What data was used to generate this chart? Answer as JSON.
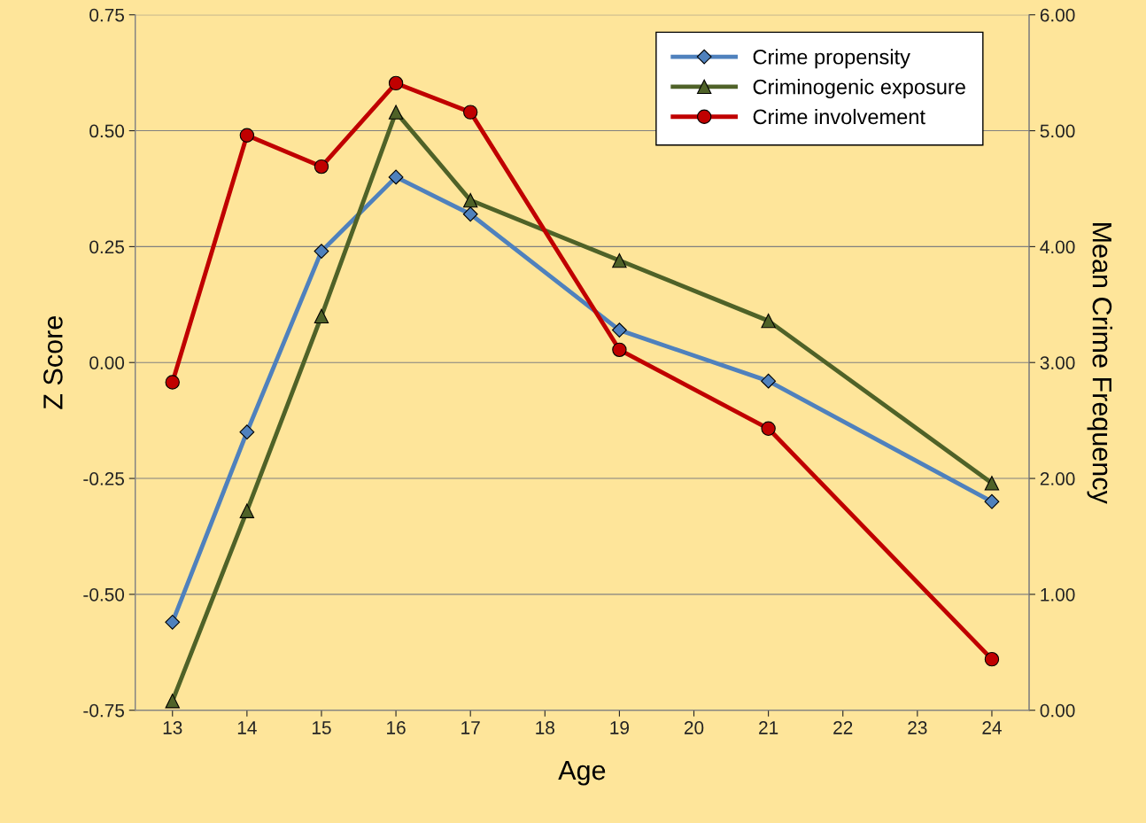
{
  "chart_data": {
    "type": "line",
    "xlabel": "Age",
    "ylabel": "Z Score",
    "y2label": "Mean Crime Frequency",
    "x": [
      13,
      14,
      15,
      16,
      17,
      19,
      21,
      24
    ],
    "xlim": [
      12.5,
      24.5
    ],
    "xticks": [
      13,
      14,
      15,
      16,
      17,
      18,
      19,
      20,
      21,
      22,
      23,
      24
    ],
    "ylim": [
      -0.75,
      0.75
    ],
    "yticks": [
      {
        "value": -0.75,
        "label": "-0.75"
      },
      {
        "value": -0.5,
        "label": "-0.50"
      },
      {
        "value": -0.25,
        "label": "-0.25"
      },
      {
        "value": 0,
        "label": "0.00"
      },
      {
        "value": 0.25,
        "label": "0.25"
      },
      {
        "value": 0.5,
        "label": "0.50"
      },
      {
        "value": 0.75,
        "label": "0.75"
      }
    ],
    "y2lim": [
      0,
      6
    ],
    "y2ticks": [
      {
        "value": 0,
        "label": "0.00"
      },
      {
        "value": 1,
        "label": "1.00"
      },
      {
        "value": 2,
        "label": "2.00"
      },
      {
        "value": 3,
        "label": "3.00"
      },
      {
        "value": 4,
        "label": "4.00"
      },
      {
        "value": 5,
        "label": "5.00"
      },
      {
        "value": 6,
        "label": "6.00"
      }
    ],
    "grid": "y",
    "legend": "top right",
    "series": [
      {
        "name": "Crime propensity",
        "color": "#4f81bd",
        "marker": "diamond",
        "values": [
          -0.56,
          -0.15,
          0.24,
          0.4,
          0.32,
          0.07,
          -0.04,
          -0.3
        ]
      },
      {
        "name": "Criminogenic exposure",
        "color": "#4f6228",
        "marker": "triangle",
        "values": [
          -0.73,
          -0.32,
          0.1,
          0.54,
          0.35,
          0.22,
          0.09,
          -0.26
        ]
      },
      {
        "name": "Crime involvement",
        "color": "#c00000",
        "marker": "circle",
        "axis": "y2",
        "values": [
          2.83,
          4.96,
          4.69,
          5.41,
          5.16,
          3.11,
          2.43,
          0.44
        ]
      }
    ]
  }
}
